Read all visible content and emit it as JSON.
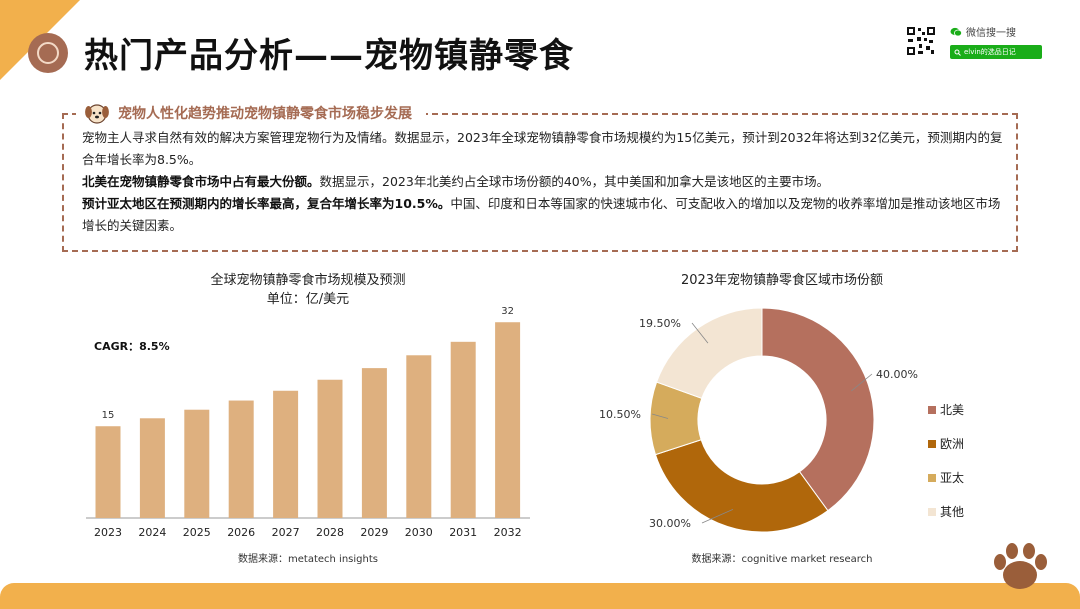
{
  "page_title": "热门产品分析——宠物镇静零食",
  "search": {
    "label": "微信搜一搜",
    "account": "elvin的选品日记"
  },
  "intro": {
    "heading": "宠物人性化趋势推动宠物镇静零食市场稳步发展",
    "p1": "宠物主人寻求自然有效的解决方案管理宠物行为及情绪。数据显示，2023年全球宠物镇静零食市场规模约为15亿美元，预计到2032年将达到32亿美元，预测期内的复合年增长率为8.5%。",
    "p2_bold": "北美在宠物镇静零食市场中占有最大份额。",
    "p2_rest": "数据显示，2023年北美约占全球市场份额的40%，其中美国和加拿大是该地区的主要市场。",
    "p3_bold": "预计亚太地区在预测期内的增长率最高，复合年增长率为10.5%。",
    "p3_rest": "中国、印度和日本等国家的快速城市化、可支配收入的增加以及宠物的收养率增加是推动该地区市场增长的关键因素。"
  },
  "colors": {
    "accent": "#a56b53",
    "bar": "#deb07f",
    "band": "#f2b04c"
  },
  "chart_data": [
    {
      "type": "bar",
      "title": "全球宠物镇静零食市场规模及预测",
      "subtitle": "单位：亿/美元",
      "annotation": "CAGR：8.5%",
      "categories": [
        "2023",
        "2024",
        "2025",
        "2026",
        "2027",
        "2028",
        "2029",
        "2030",
        "2031",
        "2032"
      ],
      "values": [
        15,
        16.3,
        17.7,
        19.2,
        20.8,
        22.6,
        24.5,
        26.6,
        28.8,
        32
      ],
      "data_labels": {
        "0": "15",
        "9": "32"
      },
      "ylim": [
        0,
        34
      ],
      "source": "数据来源：metatech insights"
    },
    {
      "type": "pie",
      "title": "2023年宠物镇静零食区域市场份额",
      "labels": [
        "北美",
        "欧洲",
        "亚太",
        "其他"
      ],
      "values": [
        40.0,
        30.0,
        10.5,
        19.5
      ],
      "value_labels": [
        "40.00%",
        "30.00%",
        "10.50%",
        "19.50%"
      ],
      "colors": [
        "#b5705e",
        "#b0670b",
        "#d5ab5c",
        "#f3e5d3"
      ],
      "legend": "right",
      "source": "数据来源：cognitive market research"
    }
  ]
}
